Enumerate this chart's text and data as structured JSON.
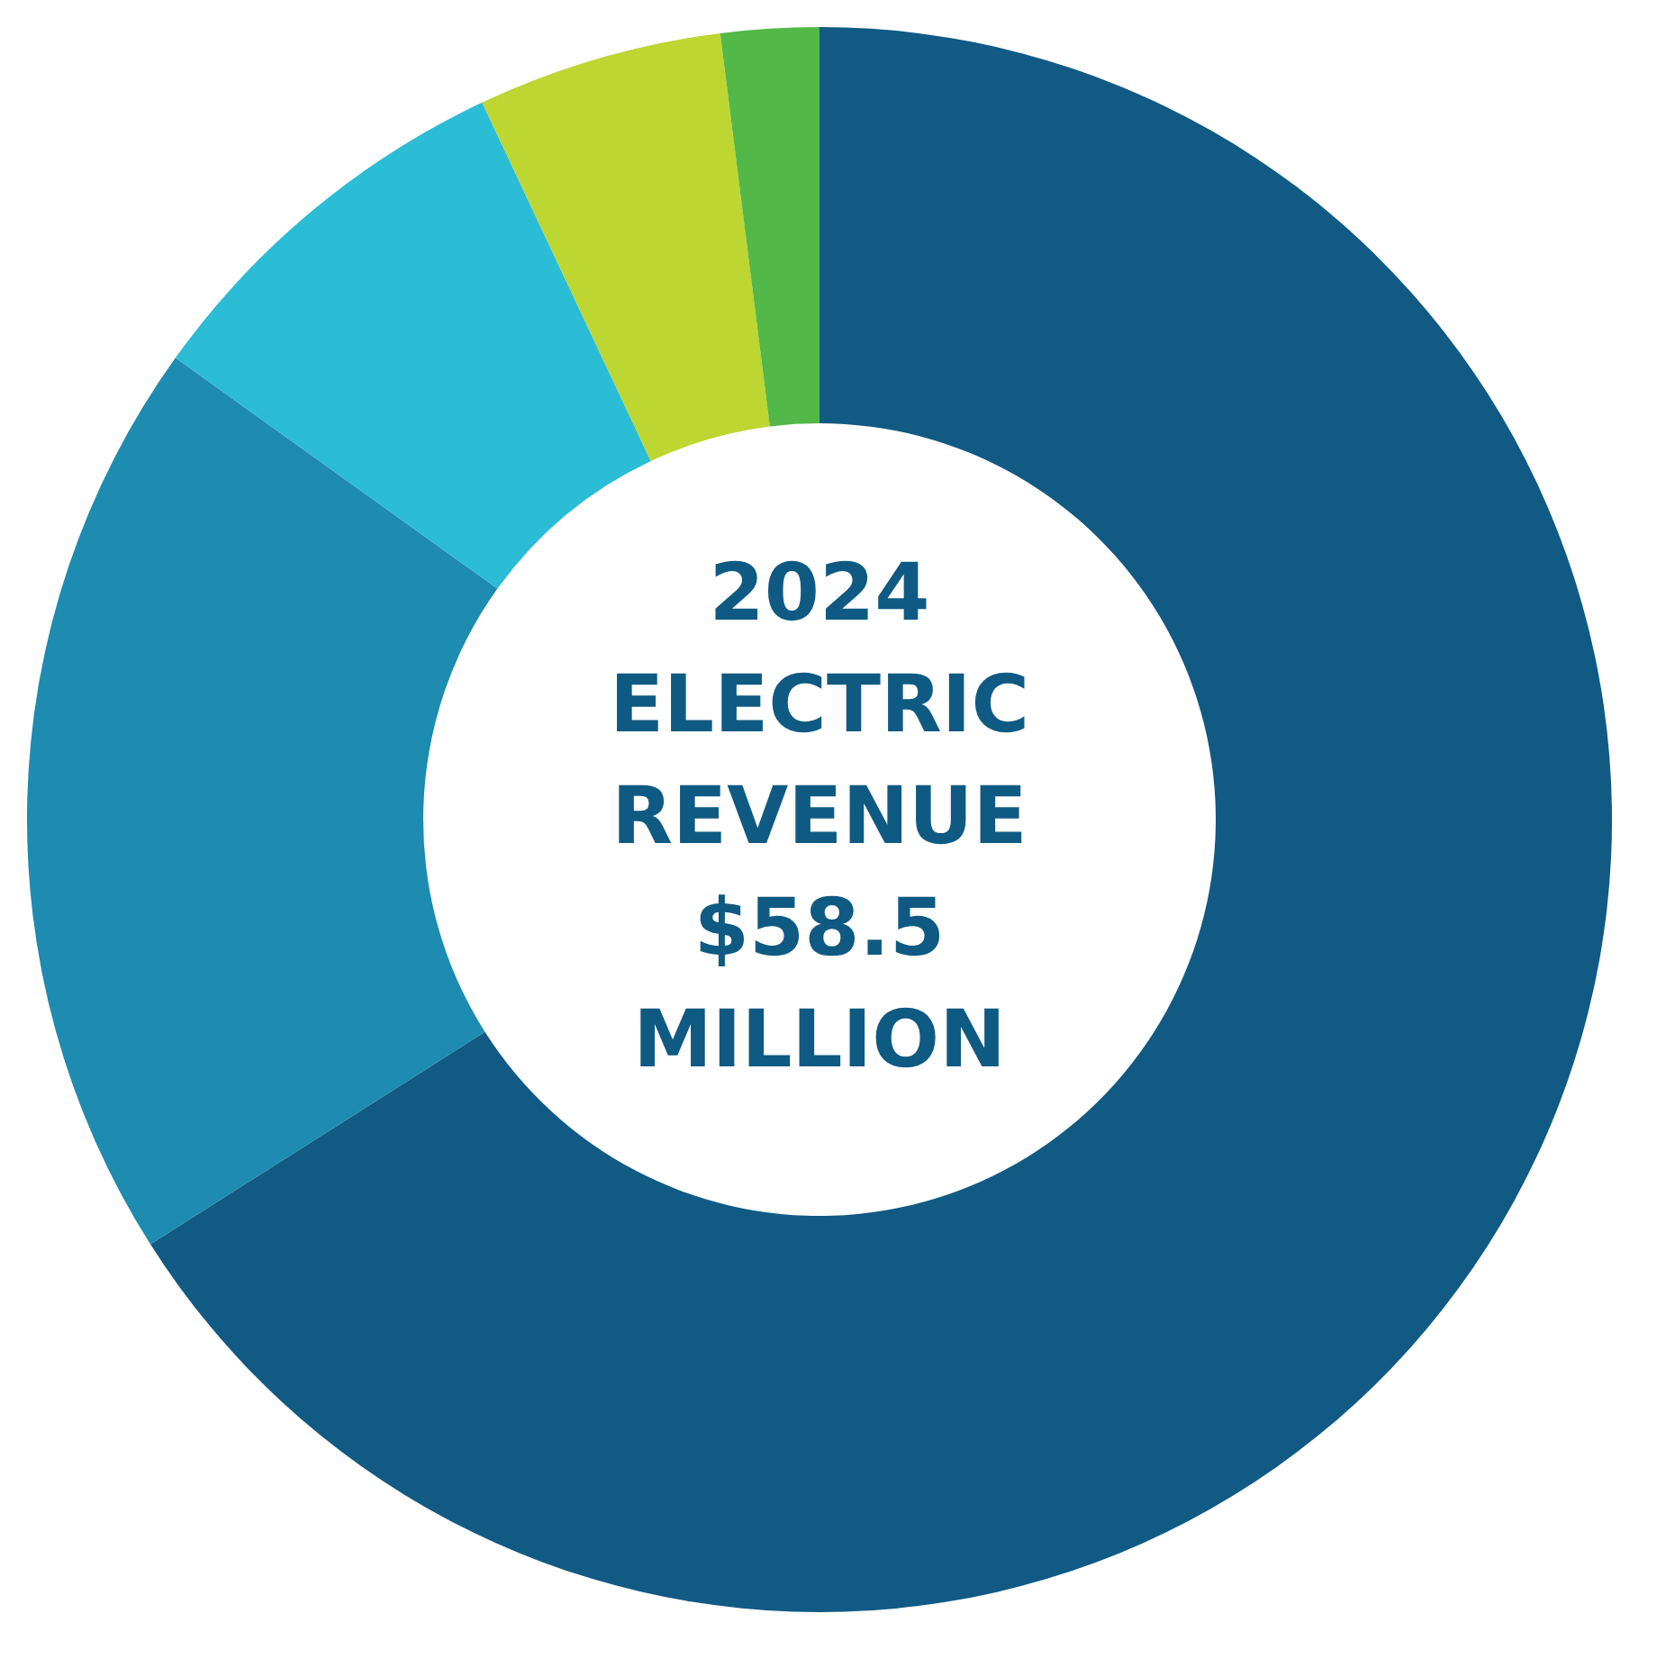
{
  "chart_data": {
    "type": "donut",
    "title": "2024 ELECTRIC REVENUE $58.5 MILLION",
    "categories": [
      null,
      null,
      null,
      null,
      null
    ],
    "values": [
      66.0,
      18.9,
      8.1,
      5.0,
      2.0
    ],
    "colors": [
      "#115a84",
      "#1e8bb0",
      "#2bbcd6",
      "#bdd631",
      "#52b848"
    ],
    "legend": false
  }
}
